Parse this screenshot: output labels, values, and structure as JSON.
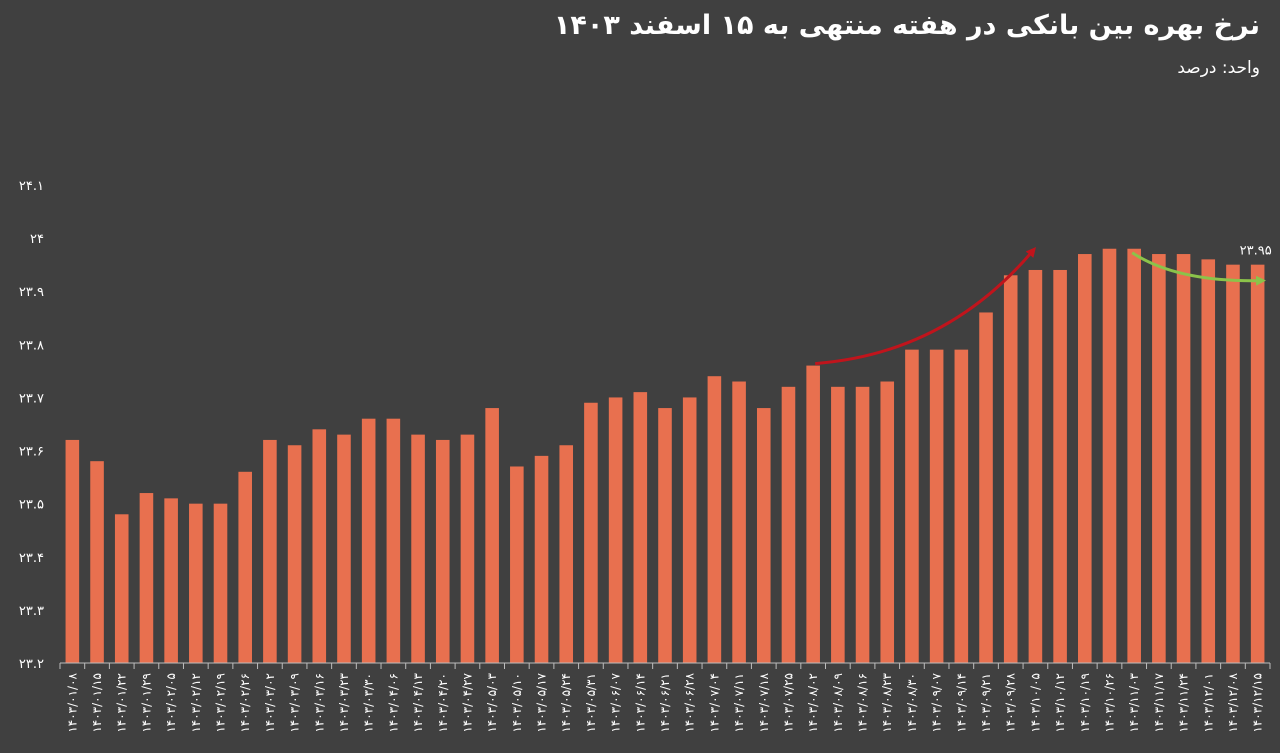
{
  "chart_data": {
    "type": "bar",
    "title": "نرخ بهره بین بانکی در هفته منتهی به ۱۵ اسفند ۱۴۰۳",
    "subtitle": "واحد: درصد",
    "xlabel": "",
    "ylabel": "",
    "ylim": [
      23.2,
      24.1
    ],
    "yticks": [
      "۲۳.۲",
      "۲۳.۳",
      "۲۳.۴",
      "۲۳.۵",
      "۲۳.۶",
      "۲۳.۷",
      "۲۳.۸",
      "۲۳.۹",
      "۲۴",
      "۲۴.۱"
    ],
    "ytick_values": [
      23.2,
      23.3,
      23.4,
      23.5,
      23.6,
      23.7,
      23.8,
      23.9,
      24.0,
      24.1
    ],
    "grid": false,
    "bar_color": "#e8704f",
    "categories": [
      "۱۴۰۳/۰۱/۰۸",
      "۱۴۰۳/۰۱/۱۵",
      "۱۴۰۳/۰۱/۲۲",
      "۱۴۰۳/۰۱/۲۹",
      "۱۴۰۳/۰۲/۰۵",
      "۱۴۰۳/۰۲/۱۲",
      "۱۴۰۳/۰۲/۱۹",
      "۱۴۰۳/۰۲/۲۶",
      "۱۴۰۳/۰۳/۰۲",
      "۱۴۰۳/۰۳/۰۹",
      "۱۴۰۳/۰۳/۱۶",
      "۱۴۰۳/۰۳/۲۳",
      "۱۴۰۳/۰۳/۳۰",
      "۱۴۰۳/۰۴/۰۶",
      "۱۴۰۳/۰۴/۱۳",
      "۱۴۰۳/۰۴/۲۰",
      "۱۴۰۳/۰۴/۲۷",
      "۱۴۰۳/۰۵/۰۳",
      "۱۴۰۳/۰۵/۱۰",
      "۱۴۰۳/۰۵/۱۷",
      "۱۴۰۳/۰۵/۲۴",
      "۱۴۰۳/۰۵/۳۱",
      "۱۴۰۳/۰۶/۰۷",
      "۱۴۰۳/۰۶/۱۴",
      "۱۴۰۳/۰۶/۲۱",
      "۱۴۰۳/۰۶/۲۸",
      "۱۴۰۳/۰۷/۰۴",
      "۱۴۰۳/۰۷/۱۱",
      "۱۴۰۳/۰۷/۱۸",
      "۱۴۰۳/۰۷/۲۵",
      "۱۴۰۳/۰۸/۰۲",
      "۱۴۰۳/۰۸/۰۹",
      "۱۴۰۳/۰۸/۱۶",
      "۱۴۰۳/۰۸/۲۳",
      "۱۴۰۳/۰۸/۳۰",
      "۱۴۰۳/۰۹/۰۷",
      "۱۴۰۳/۰۹/۱۴",
      "۱۴۰۳/۰۹/۲۱",
      "۱۴۰۳/۰۹/۲۸",
      "۱۴۰۳/۱۰/۰۵",
      "۱۴۰۳/۱۰/۱۲",
      "۱۴۰۳/۱۰/۱۹",
      "۱۴۰۳/۱۰/۲۶",
      "۱۴۰۳/۱۱/۰۳",
      "۱۴۰۳/۱۱/۱۷",
      "۱۴۰۳/۱۱/۲۴",
      "۱۴۰۳/۱۲/۰۱",
      "۱۴۰۳/۱۲/۰۸",
      "۱۴۰۳/۱۲/۱۵"
    ],
    "values": [
      23.62,
      23.58,
      23.48,
      23.52,
      23.51,
      23.5,
      23.5,
      23.56,
      23.62,
      23.61,
      23.64,
      23.63,
      23.66,
      23.66,
      23.63,
      23.62,
      23.63,
      23.68,
      23.57,
      23.59,
      23.61,
      23.69,
      23.7,
      23.71,
      23.68,
      23.7,
      23.74,
      23.73,
      23.68,
      23.72,
      23.76,
      23.72,
      23.72,
      23.73,
      23.79,
      23.79,
      23.79,
      23.86,
      23.93,
      23.94,
      23.94,
      23.97,
      23.98,
      23.98,
      23.97,
      23.97,
      23.96,
      23.95,
      23.95
    ],
    "annotations": [
      {
        "text": "۲۳.۹۵",
        "category_index": 48
      }
    ],
    "trend_arrows": [
      {
        "color": "#c0141c",
        "from_index": 30,
        "to_index": 39
      },
      {
        "color": "#8bc34a",
        "from_index": 43,
        "to_index": 48
      }
    ]
  }
}
